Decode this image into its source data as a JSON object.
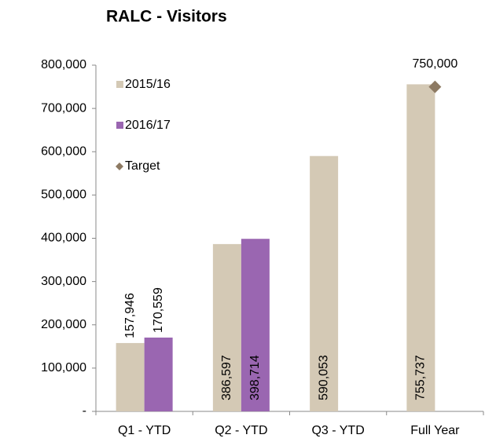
{
  "chart_data": {
    "type": "bar",
    "title": "RALC - Visitors",
    "categories": [
      "Q1 - YTD",
      "Q2 - YTD",
      "Q3 - YTD",
      "Full Year"
    ],
    "series": [
      {
        "name": "2015/16",
        "color": "#d4c9b5",
        "values": [
          157946,
          386597,
          590053,
          755737
        ],
        "value_labels": [
          "157,946",
          "386,597",
          "590,053",
          "755,737"
        ]
      },
      {
        "name": "2016/17",
        "color": "#9a66b1",
        "values": [
          170559,
          398714,
          null,
          null
        ],
        "value_labels": [
          "170,559",
          "398,714",
          null,
          null
        ]
      },
      {
        "name": "Target",
        "color": "#8d7a63",
        "type": "scatter",
        "marker": "diamond",
        "values": [
          null,
          null,
          null,
          750000
        ],
        "value_labels": [
          null,
          null,
          null,
          "750,000"
        ]
      }
    ],
    "ylim": [
      0,
      800000
    ],
    "yticks": [
      {
        "value": 0,
        "label": "-"
      },
      {
        "value": 100000,
        "label": "100,000"
      },
      {
        "value": 200000,
        "label": "200,000"
      },
      {
        "value": 300000,
        "label": "300,000"
      },
      {
        "value": 400000,
        "label": "400,000"
      },
      {
        "value": 500000,
        "label": "500,000"
      },
      {
        "value": 600000,
        "label": "600,000"
      },
      {
        "value": 700000,
        "label": "700,000"
      },
      {
        "value": 800000,
        "label": "800,000"
      }
    ],
    "legend": "top-left"
  }
}
